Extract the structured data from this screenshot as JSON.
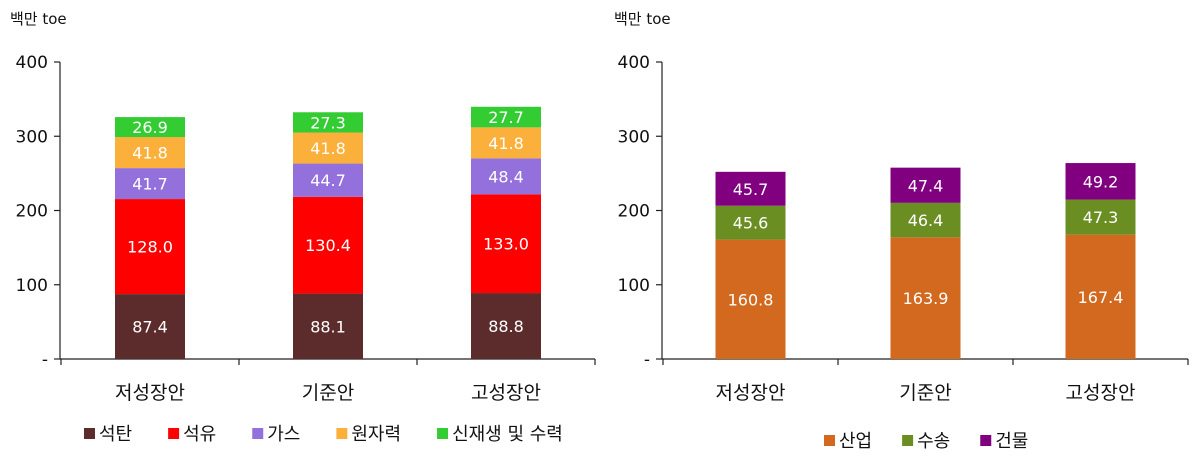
{
  "chart_data": [
    {
      "type": "bar",
      "stacked": true,
      "unit_label": "백만 toe",
      "categories": [
        "저성장안",
        "기준안",
        "고성장안"
      ],
      "ylim": [
        0,
        400
      ],
      "yticks": [
        {
          "value": 0,
          "label": "-"
        },
        {
          "value": 100,
          "label": "100"
        },
        {
          "value": 200,
          "label": "200"
        },
        {
          "value": 300,
          "label": "300"
        },
        {
          "value": 400,
          "label": "400"
        }
      ],
      "grid": false,
      "legend_position": "bottom",
      "series": [
        {
          "name": "석탄",
          "color": "#5c2c2c",
          "values": [
            87.4,
            88.1,
            88.8
          ],
          "labels": [
            "87.4",
            "88.1",
            "88.8"
          ]
        },
        {
          "name": "석유",
          "color": "#ff0000",
          "values": [
            128.0,
            130.4,
            133.0
          ],
          "labels": [
            "128.0",
            "130.4",
            "133.0"
          ]
        },
        {
          "name": "가스",
          "color": "#9370db",
          "values": [
            41.7,
            44.7,
            48.4
          ],
          "labels": [
            "41.7",
            "44.7",
            "48.4"
          ]
        },
        {
          "name": "원자력",
          "color": "#fbb03b",
          "values": [
            41.8,
            41.8,
            41.8
          ],
          "labels": [
            "41.8",
            "41.8",
            "41.8"
          ]
        },
        {
          "name": "신재생 및 수력",
          "color": "#33cc33",
          "values": [
            26.9,
            27.3,
            27.7
          ],
          "labels": [
            "26.9",
            "27.3",
            "27.7"
          ]
        }
      ]
    },
    {
      "type": "bar",
      "stacked": true,
      "unit_label": "백만 toe",
      "categories": [
        "저성장안",
        "기준안",
        "고성장안"
      ],
      "ylim": [
        0,
        400
      ],
      "yticks": [
        {
          "value": 0,
          "label": "-"
        },
        {
          "value": 100,
          "label": "100"
        },
        {
          "value": 200,
          "label": "200"
        },
        {
          "value": 300,
          "label": "300"
        },
        {
          "value": 400,
          "label": "400"
        }
      ],
      "grid": false,
      "legend_position": "bottom",
      "series": [
        {
          "name": "산업",
          "color": "#d2691e",
          "values": [
            160.8,
            163.9,
            167.4
          ],
          "labels": [
            "160.8",
            "163.9",
            "167.4"
          ]
        },
        {
          "name": "수송",
          "color": "#6b8e23",
          "values": [
            45.6,
            46.4,
            47.3
          ],
          "labels": [
            "45.6",
            "46.4",
            "47.3"
          ]
        },
        {
          "name": "건물",
          "color": "#800080",
          "values": [
            45.7,
            47.4,
            49.2
          ],
          "labels": [
            "45.7",
            "47.4",
            "49.2"
          ]
        }
      ]
    }
  ]
}
